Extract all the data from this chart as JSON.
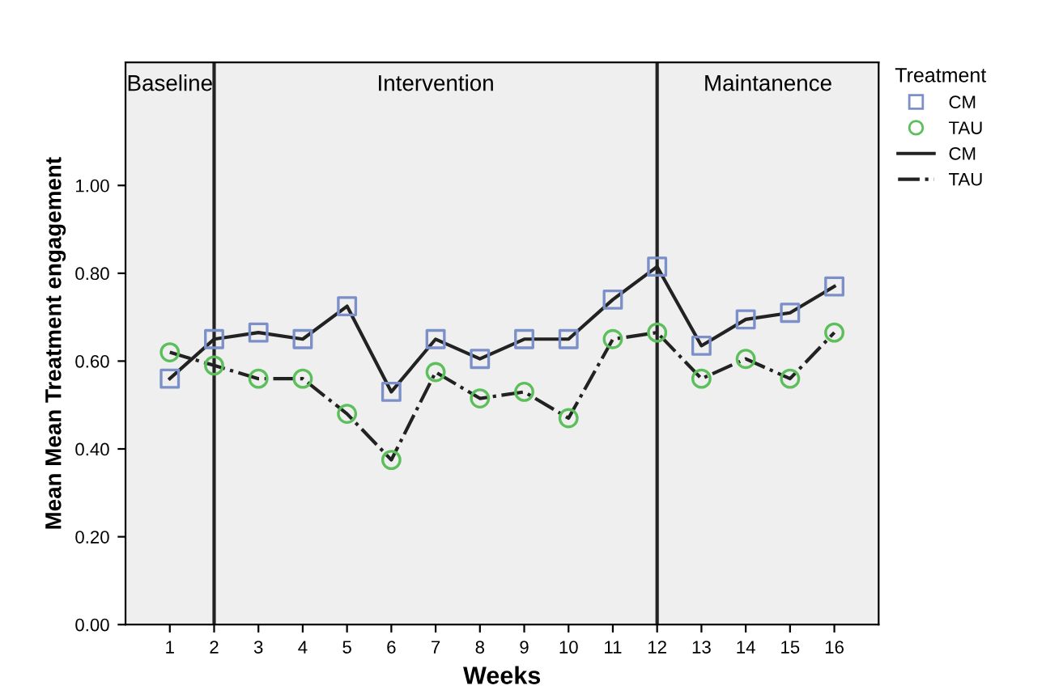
{
  "chart_data": {
    "type": "line",
    "xlabel": "Weeks",
    "ylabel": "Mean Mean Treatment engagement",
    "legend_title": "Treatment",
    "x": [
      1,
      2,
      3,
      4,
      5,
      6,
      7,
      8,
      9,
      10,
      11,
      12,
      13,
      14,
      15,
      16
    ],
    "series": [
      {
        "name": "CM",
        "type": "scatter",
        "marker": "square",
        "color": "#7b8fc8",
        "values": [
          0.56,
          0.65,
          0.665,
          0.65,
          0.725,
          0.53,
          0.65,
          0.605,
          0.65,
          0.65,
          0.74,
          0.815,
          0.635,
          0.695,
          0.71,
          0.77
        ]
      },
      {
        "name": "TAU",
        "type": "scatter",
        "marker": "circle",
        "color": "#5cbf5c",
        "values": [
          0.62,
          0.59,
          0.56,
          0.56,
          0.48,
          0.375,
          0.575,
          0.515,
          0.53,
          0.47,
          0.65,
          0.665,
          0.56,
          0.605,
          0.56,
          0.665
        ]
      },
      {
        "name": "CM",
        "line_style": "solid",
        "color": "#222222",
        "values": [
          0.56,
          0.65,
          0.665,
          0.65,
          0.725,
          0.53,
          0.65,
          0.605,
          0.65,
          0.65,
          0.74,
          0.815,
          0.635,
          0.695,
          0.71,
          0.77
        ]
      },
      {
        "name": "TAU",
        "line_style": "dashed",
        "color": "#222222",
        "values": [
          0.62,
          0.59,
          0.56,
          0.56,
          0.48,
          0.375,
          0.575,
          0.515,
          0.53,
          0.47,
          0.65,
          0.665,
          0.56,
          0.605,
          0.56,
          0.665
        ]
      }
    ],
    "xlim": [
      0,
      17
    ],
    "xticks": [
      1,
      2,
      3,
      4,
      5,
      6,
      7,
      8,
      9,
      10,
      11,
      12,
      13,
      14,
      15,
      16
    ],
    "ylim": [
      0,
      1.28
    ],
    "yticks": [
      {
        "value": 0,
        "label": "0.00"
      },
      {
        "value": 0.2,
        "label": "0.20"
      },
      {
        "value": 0.4,
        "label": "0.40"
      },
      {
        "value": 0.6,
        "label": "0.60"
      },
      {
        "value": 0.8,
        "label": "0.80"
      },
      {
        "value": 1.0,
        "label": "1.00"
      }
    ],
    "ref_lines": [
      {
        "axis": "x",
        "value": 2,
        "color": "#222222"
      },
      {
        "axis": "x",
        "value": 12,
        "color": "#222222"
      }
    ],
    "bands": [
      {
        "axis": "x",
        "from": 0,
        "to": 2,
        "label": "Baseline",
        "color": "#efefef"
      },
      {
        "axis": "x",
        "from": 2,
        "to": 12,
        "label": "Intervention",
        "color": "#efefef"
      },
      {
        "axis": "x",
        "from": 12,
        "to": 17,
        "label": "Maintanence",
        "color": "#efefef"
      }
    ],
    "grid": false,
    "legend": "right"
  }
}
